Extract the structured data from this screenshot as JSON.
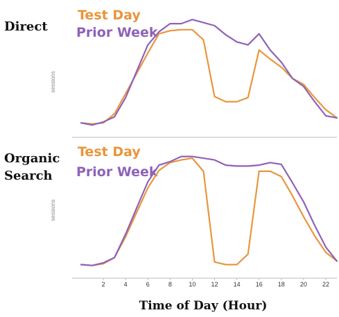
{
  "chart_data": [
    {
      "type": "line",
      "panel": "Direct",
      "ylabel": "sessions",
      "x": [
        0,
        1,
        2,
        3,
        4,
        5,
        6,
        7,
        8,
        9,
        10,
        11,
        12,
        13,
        14,
        15,
        16,
        17,
        18,
        19,
        20,
        21,
        22,
        23
      ],
      "series": [
        {
          "name": "Test Day",
          "color": "#e8963c",
          "values": [
            6,
            5,
            6,
            15,
            35,
            55,
            75,
            94,
            97,
            98,
            98,
            88,
            32,
            27,
            27,
            31,
            78,
            69,
            61,
            50,
            44,
            31,
            19,
            11
          ]
        },
        {
          "name": "Prior Week",
          "color": "#8e62b8",
          "values": [
            6,
            4,
            7,
            12,
            31,
            57,
            83,
            96,
            104,
            104,
            108,
            105,
            102,
            93,
            86,
            83,
            94,
            78,
            66,
            50,
            42,
            27,
            13,
            11
          ]
        }
      ],
      "xlim": [
        0,
        23
      ],
      "ylim": [
        0,
        115
      ],
      "legend": "top-left"
    },
    {
      "type": "line",
      "panel": "Organic Search",
      "ylabel": "sessions",
      "x": [
        0,
        1,
        2,
        3,
        4,
        5,
        6,
        7,
        8,
        9,
        10,
        11,
        12,
        13,
        14,
        15,
        16,
        17,
        18,
        19,
        20,
        21,
        22,
        23
      ],
      "series": [
        {
          "name": "Test Day",
          "color": "#e8963c",
          "values": [
            6,
            5,
            7,
            14,
            38,
            66,
            94,
            114,
            123,
            126,
            128,
            113,
            9,
            6,
            6,
            18,
            113,
            113,
            107,
            85,
            61,
            39,
            20,
            10
          ]
        },
        {
          "name": "Prior Week",
          "color": "#8e62b8",
          "values": [
            6,
            5,
            8,
            14,
            41,
            71,
            101,
            120,
            124,
            130,
            130,
            128,
            126,
            120,
            119,
            119,
            120,
            123,
            121,
            100,
            78,
            51,
            26,
            10
          ]
        }
      ],
      "xlim": [
        0,
        23
      ],
      "ylim": [
        0,
        140
      ],
      "legend": "top-left"
    }
  ],
  "x_ticks": [
    2,
    4,
    6,
    8,
    10,
    12,
    14,
    16,
    18,
    20,
    22
  ],
  "x_axis_title": "Time of Day (Hour)"
}
